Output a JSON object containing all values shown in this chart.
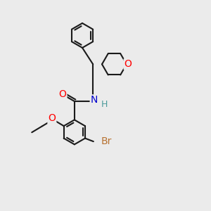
{
  "bg_color": "#ebebeb",
  "bond_color": "#1a1a1a",
  "bond_width": 1.5,
  "atom_colors": {
    "O": "#ff0000",
    "N": "#0000cc",
    "Br": "#b87333",
    "H": "#4a9a9a",
    "C": "#1a1a1a"
  },
  "layout": {
    "xlim": [
      0.0,
      6.5
    ],
    "ylim": [
      0.0,
      7.0
    ]
  }
}
